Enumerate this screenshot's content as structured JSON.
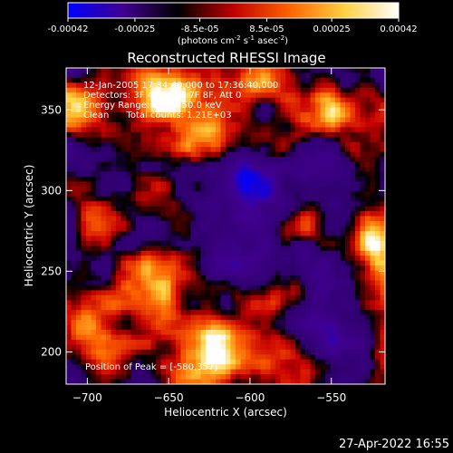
{
  "colorbar": {
    "tick_labels": [
      "-0.00042",
      "-0.00025",
      "-8.5e-05",
      "8.5e-05",
      "0.00025",
      "0.00042"
    ],
    "tick_values": [
      -0.00042,
      -0.00025,
      -8.5e-05,
      8.5e-05,
      0.00025,
      0.00042
    ],
    "range": [
      -0.00042,
      0.00042
    ],
    "units_main": "(photons cm",
    "units_exp1": "-2",
    "units_mid": " s",
    "units_exp2": "-1",
    "units_end": " asec",
    "units_exp3": "-2",
    "units_close": ")",
    "colors": [
      "#0000ff",
      "#400090",
      "#000000",
      "#c00000",
      "#ff6000",
      "#ffd040",
      "#ffffff"
    ]
  },
  "annotations": {
    "time_range": "12-Jan-2005 17:34:40.000 to 17:36:40.000",
    "detectors": "Detectors: 3F 4F 5F 6F 7F 8F, Att 0",
    "energy_range": "Energy Range: 25.0 - 50.0 keV",
    "clean_counts": "Clean      Total counts: 1.21E+03",
    "peak_position": "Position of Peak = [-580,357]"
  },
  "footer": {
    "timestamp": "27-Apr-2022 16:55"
  },
  "chart_data": {
    "type": "heatmap",
    "title": "Reconstructed RHESSI Image",
    "xlabel": "Heliocentric X (arcsec)",
    "ylabel": "Heliocentric Y (arcsec)",
    "xlim": [
      -713,
      -517
    ],
    "ylim": [
      180,
      376
    ],
    "x_ticks": [
      -700,
      -650,
      -600,
      -550
    ],
    "x_tick_labels": [
      "−700",
      "−650",
      "−600",
      "−550"
    ],
    "y_ticks": [
      200,
      250,
      300,
      350
    ],
    "y_tick_labels": [
      "200",
      "250",
      "300",
      "350"
    ],
    "peak": [
      -580,
      357
    ],
    "colorscale_range": [
      -0.00042,
      0.00042
    ]
  }
}
